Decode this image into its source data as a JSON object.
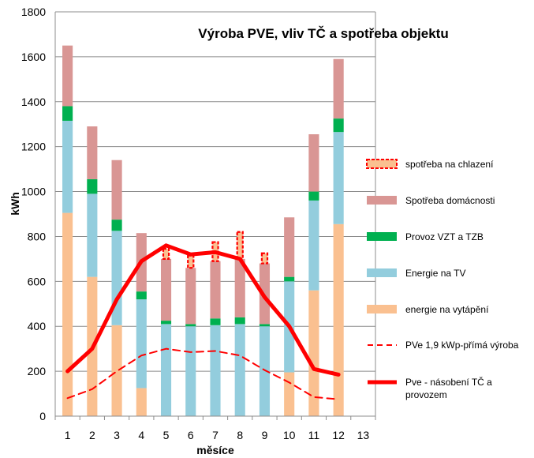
{
  "chart_data": {
    "type": "bar",
    "title": "Výroba PVE, vliv TČ a spotřeba objektu",
    "xlabel": "měsíce",
    "ylabel": "kWh",
    "ylim": [
      0,
      1800
    ],
    "yticks": [
      0,
      200,
      400,
      600,
      800,
      1000,
      1200,
      1400,
      1600,
      1800
    ],
    "xlim": [
      0.5,
      13.5
    ],
    "categories": [
      "1",
      "2",
      "3",
      "4",
      "5",
      "6",
      "7",
      "8",
      "9",
      "10",
      "11",
      "12",
      "13"
    ],
    "grid": true,
    "legend_position": "right",
    "stacked": true,
    "series": [
      {
        "name": "energie na vytápění",
        "kind": "bar",
        "color": "#FAC090",
        "values": [
          905,
          620,
          405,
          125,
          0,
          0,
          0,
          0,
          0,
          195,
          560,
          855,
          0
        ]
      },
      {
        "name": "Energie na TV",
        "kind": "bar",
        "color": "#93CDDD",
        "values": [
          410,
          370,
          420,
          395,
          410,
          400,
          405,
          410,
          400,
          405,
          400,
          410,
          0
        ]
      },
      {
        "name": "Provoz VZT a TZB",
        "kind": "bar",
        "color": "#00B050",
        "values": [
          65,
          65,
          50,
          35,
          15,
          10,
          30,
          30,
          10,
          20,
          40,
          60,
          0
        ]
      },
      {
        "name": "Spotřeba domácnosti",
        "kind": "bar",
        "color": "#D99694",
        "values": [
          270,
          235,
          265,
          260,
          275,
          250,
          255,
          260,
          270,
          265,
          255,
          265,
          0
        ]
      },
      {
        "name": "spotřeba na chlazení",
        "kind": "bar",
        "color": "#FAC090",
        "border": "#FF0000",
        "dashed": true,
        "values": [
          0,
          0,
          0,
          0,
          45,
          55,
          85,
          120,
          45,
          0,
          0,
          0,
          0
        ]
      },
      {
        "name": "PVe 1,9 kWp-přímá výroba",
        "kind": "line",
        "color": "#FF0000",
        "dashed": true,
        "x": [
          1,
          2,
          3,
          4,
          5,
          6,
          7,
          8,
          9,
          10,
          11,
          12
        ],
        "values": [
          80,
          120,
          200,
          270,
          300,
          285,
          290,
          270,
          205,
          150,
          85,
          75
        ]
      },
      {
        "name": "Pve - násobení TČ a provozem",
        "kind": "line",
        "color": "#FF0000",
        "dashed": false,
        "x": [
          1,
          2,
          3,
          4,
          5,
          6,
          7,
          8,
          9,
          10,
          11,
          12
        ],
        "values": [
          200,
          300,
          520,
          690,
          760,
          720,
          730,
          700,
          530,
          400,
          210,
          185
        ]
      }
    ],
    "legend_order": [
      "spotřeba na chlazení",
      "Spotřeba domácnosti",
      "Provoz VZT a TZB",
      "Energie na TV",
      "energie na vytápění",
      "PVe 1,9 kWp-přímá výroba",
      "Pve - násobení TČ a provozem"
    ]
  }
}
